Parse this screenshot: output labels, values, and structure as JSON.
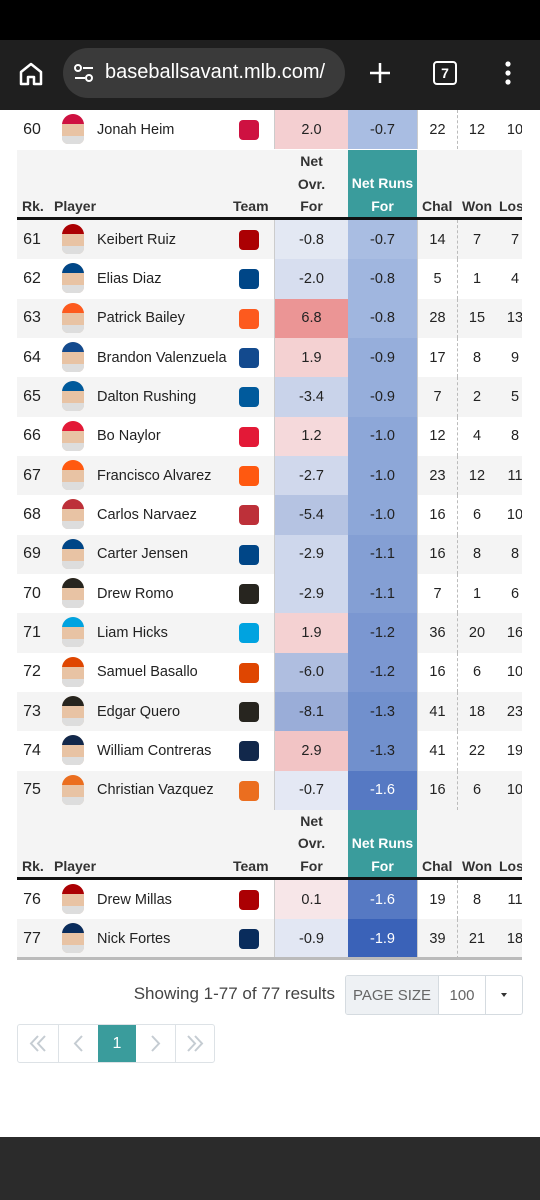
{
  "browser": {
    "url": "baseballsavant.mlb.com/",
    "tab_count": "7"
  },
  "table": {
    "headers": {
      "rank": "Rk.",
      "player": "Player",
      "team": "Team",
      "net_ovr_for": [
        "Net",
        "Ovr.",
        "For"
      ],
      "net_runs_for": [
        "Net Runs",
        "For"
      ],
      "chal": "Chal",
      "won": "Won",
      "lost": "Lost"
    },
    "rows": [
      [
        "60",
        "Jonah Heim",
        "2.0",
        "-0.7",
        "22",
        "12",
        "10"
      ],
      [
        "61",
        "Keibert Ruiz",
        "-0.8",
        "-0.7",
        "14",
        "7",
        "7"
      ],
      [
        "62",
        "Elias Diaz",
        "-2.0",
        "-0.8",
        "5",
        "1",
        "4"
      ],
      [
        "63",
        "Patrick Bailey",
        "6.8",
        "-0.8",
        "28",
        "15",
        "13"
      ],
      [
        "64",
        "Brandon Valenzuela",
        "1.9",
        "-0.9",
        "17",
        "8",
        "9"
      ],
      [
        "65",
        "Dalton Rushing",
        "-3.4",
        "-0.9",
        "7",
        "2",
        "5"
      ],
      [
        "66",
        "Bo Naylor",
        "1.2",
        "-1.0",
        "12",
        "4",
        "8"
      ],
      [
        "67",
        "Francisco Alvarez",
        "-2.7",
        "-1.0",
        "23",
        "12",
        "11"
      ],
      [
        "68",
        "Carlos Narvaez",
        "-5.4",
        "-1.0",
        "16",
        "6",
        "10"
      ],
      [
        "69",
        "Carter Jensen",
        "-2.9",
        "-1.1",
        "16",
        "8",
        "8"
      ],
      [
        "70",
        "Drew Romo",
        "-2.9",
        "-1.1",
        "7",
        "1",
        "6"
      ],
      [
        "71",
        "Liam Hicks",
        "1.9",
        "-1.2",
        "36",
        "20",
        "16"
      ],
      [
        "72",
        "Samuel Basallo",
        "-6.0",
        "-1.2",
        "16",
        "6",
        "10"
      ],
      [
        "73",
        "Edgar Quero",
        "-8.1",
        "-1.3",
        "41",
        "18",
        "23"
      ],
      [
        "74",
        "William Contreras",
        "2.9",
        "-1.3",
        "41",
        "22",
        "19"
      ],
      [
        "75",
        "Christian Vazquez",
        "-0.7",
        "-1.6",
        "16",
        "6",
        "10"
      ],
      [
        "76",
        "Drew Millas",
        "0.1",
        "-1.6",
        "19",
        "8",
        "11"
      ],
      [
        "77",
        "Nick Fortes",
        "-0.9",
        "-1.9",
        "39",
        "21",
        "18"
      ]
    ]
  },
  "footer": {
    "results": "Showing 1-77 of 77 results",
    "page_size_label": "PAGE SIZE",
    "page_size": "100",
    "current_page": "1"
  }
}
